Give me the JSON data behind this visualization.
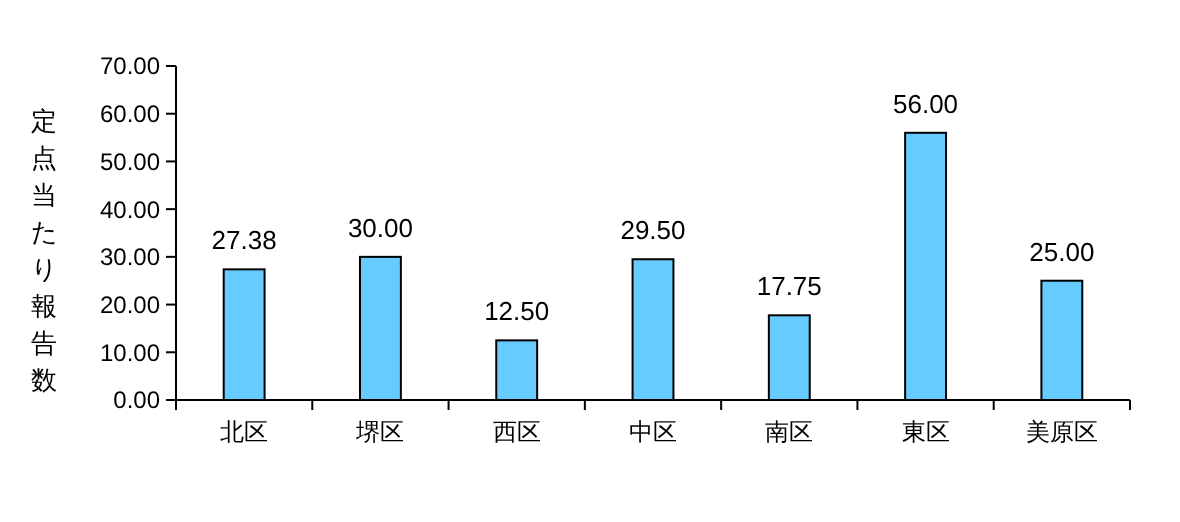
{
  "chart_data": {
    "type": "bar",
    "ylabel": "定点当たり報告数",
    "categories": [
      "北区",
      "堺区",
      "西区",
      "中区",
      "南区",
      "東区",
      "美原区"
    ],
    "values": [
      27.38,
      30.0,
      12.5,
      29.5,
      17.75,
      56.0,
      25.0
    ],
    "value_labels": [
      "27.38",
      "30.00",
      "12.50",
      "29.50",
      "17.75",
      "56.00",
      "25.00"
    ],
    "color": "#66ccff",
    "ylim": [
      0,
      70
    ],
    "yticks": [
      {
        "value": 0,
        "label": "0.00"
      },
      {
        "value": 10,
        "label": "10.00"
      },
      {
        "value": 20,
        "label": "20.00"
      },
      {
        "value": 30,
        "label": "30.00"
      },
      {
        "value": 40,
        "label": "40.00"
      },
      {
        "value": 50,
        "label": "50.00"
      },
      {
        "value": 60,
        "label": "60.00"
      },
      {
        "value": 70,
        "label": "70.00"
      }
    ],
    "grid": false
  }
}
